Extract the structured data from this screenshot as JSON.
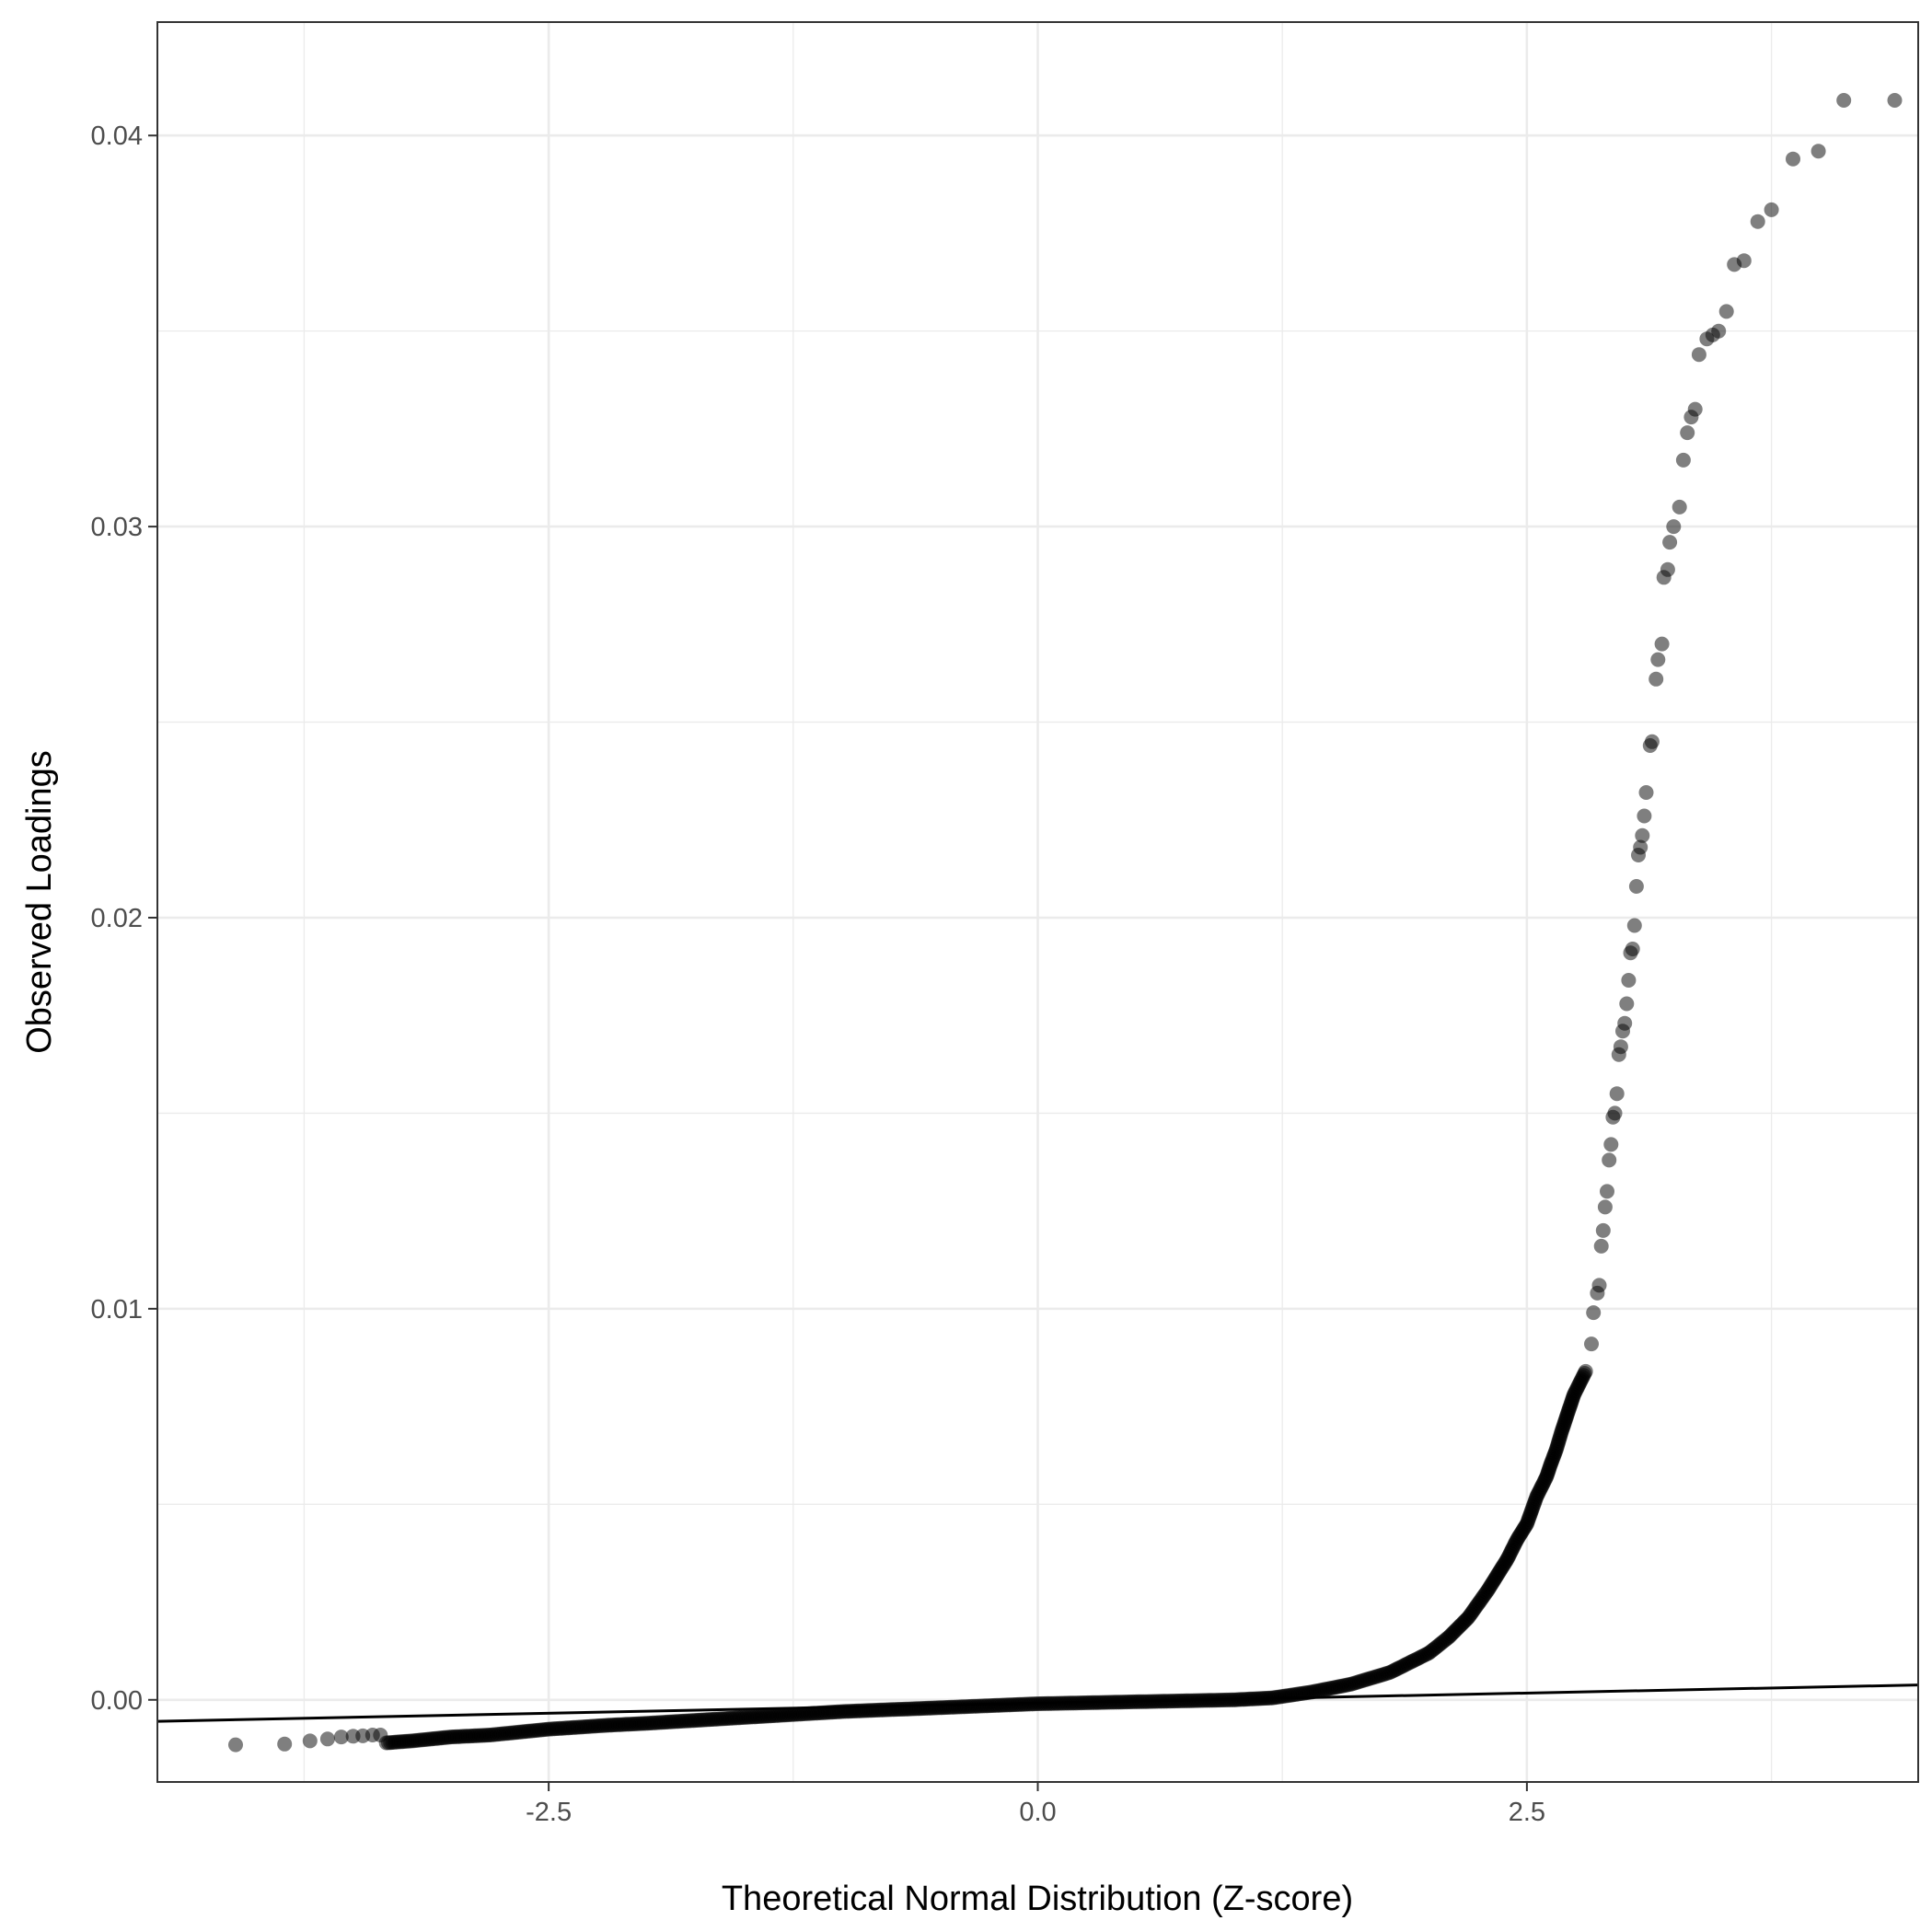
{
  "chart_data": {
    "type": "scatter",
    "title": "",
    "xlabel": "Theoretical Normal Distribution (Z-score)",
    "ylabel": "Observed Loadings",
    "xlim": [
      -4.5,
      4.5
    ],
    "ylim": [
      -0.0021,
      0.0429
    ],
    "x_ticks": [
      -2.5,
      0.0,
      2.5
    ],
    "x_tick_labels": [
      "-2.5",
      "0.0",
      "2.5"
    ],
    "y_ticks": [
      0.0,
      0.01,
      0.02,
      0.03,
      0.04
    ],
    "y_tick_labels": [
      "0.00",
      "0.01",
      "0.02",
      "0.03",
      "0.04"
    ],
    "grid": true,
    "legend": "none",
    "point_color": "#000000",
    "point_opacity": 0.5,
    "reference_line": {
      "x": [
        -4.5,
        4.5
      ],
      "y": [
        -0.00055,
        0.00038
      ],
      "color": "#000000"
    },
    "curve_points": {
      "x": [
        -3.33,
        -3.2,
        -3.0,
        -2.8,
        -2.5,
        -2.2,
        -2.0,
        -1.5,
        -1.0,
        -0.5,
        0.0,
        0.5,
        1.0,
        1.2,
        1.4,
        1.6,
        1.8,
        2.0,
        2.1,
        2.2,
        2.3,
        2.35,
        2.4,
        2.45,
        2.5,
        2.55,
        2.6,
        2.62,
        2.65,
        2.68,
        2.7,
        2.72,
        2.74,
        2.76,
        2.78,
        2.79,
        2.8
      ],
      "y": [
        -0.0011,
        -0.00105,
        -0.00095,
        -0.0009,
        -0.00075,
        -0.00065,
        -0.0006,
        -0.00045,
        -0.0003,
        -0.0002,
        -0.0001,
        -5e-05,
        0.0,
        5e-05,
        0.0002,
        0.0004,
        0.0007,
        0.0012,
        0.0016,
        0.0021,
        0.0028,
        0.0032,
        0.0036,
        0.0041,
        0.0045,
        0.0052,
        0.0057,
        0.006,
        0.0064,
        0.0069,
        0.0072,
        0.0075,
        0.0078,
        0.008,
        0.0082,
        0.0083,
        0.0084
      ]
    },
    "points": {
      "x": [
        -4.1,
        -3.85,
        -3.72,
        -3.63,
        -3.56,
        -3.5,
        -3.45,
        -3.4,
        -3.36,
        2.83,
        2.84,
        2.86,
        2.87,
        2.88,
        2.89,
        2.9,
        2.91,
        2.92,
        2.93,
        2.94,
        2.95,
        2.96,
        2.97,
        2.98,
        2.99,
        3.0,
        3.01,
        3.02,
        3.03,
        3.04,
        3.05,
        3.06,
        3.07,
        3.08,
        3.09,
        3.1,
        3.11,
        3.13,
        3.14,
        3.16,
        3.17,
        3.19,
        3.2,
        3.22,
        3.23,
        3.25,
        3.28,
        3.3,
        3.32,
        3.34,
        3.36,
        3.38,
        3.42,
        3.45,
        3.48,
        3.52,
        3.56,
        3.61,
        3.68,
        3.75,
        3.86,
        3.99,
        4.12,
        4.38
      ],
      "y": [
        -0.00115,
        -0.00113,
        -0.00105,
        -0.001,
        -0.00095,
        -0.00093,
        -0.00092,
        -0.0009,
        -0.0009,
        0.0091,
        0.0099,
        0.0104,
        0.0106,
        0.0116,
        0.012,
        0.0126,
        0.013,
        0.0138,
        0.0142,
        0.0149,
        0.015,
        0.0155,
        0.0165,
        0.0167,
        0.0171,
        0.0173,
        0.0178,
        0.0184,
        0.0191,
        0.0192,
        0.0198,
        0.0208,
        0.0216,
        0.0218,
        0.0221,
        0.0226,
        0.0232,
        0.0244,
        0.0245,
        0.0261,
        0.0266,
        0.027,
        0.0287,
        0.0289,
        0.0296,
        0.03,
        0.0305,
        0.0317,
        0.0324,
        0.0328,
        0.033,
        0.0344,
        0.0348,
        0.0349,
        0.035,
        0.0355,
        0.0367,
        0.0368,
        0.0378,
        0.0381,
        0.0394,
        0.0396,
        0.0409,
        0.0409
      ]
    }
  }
}
